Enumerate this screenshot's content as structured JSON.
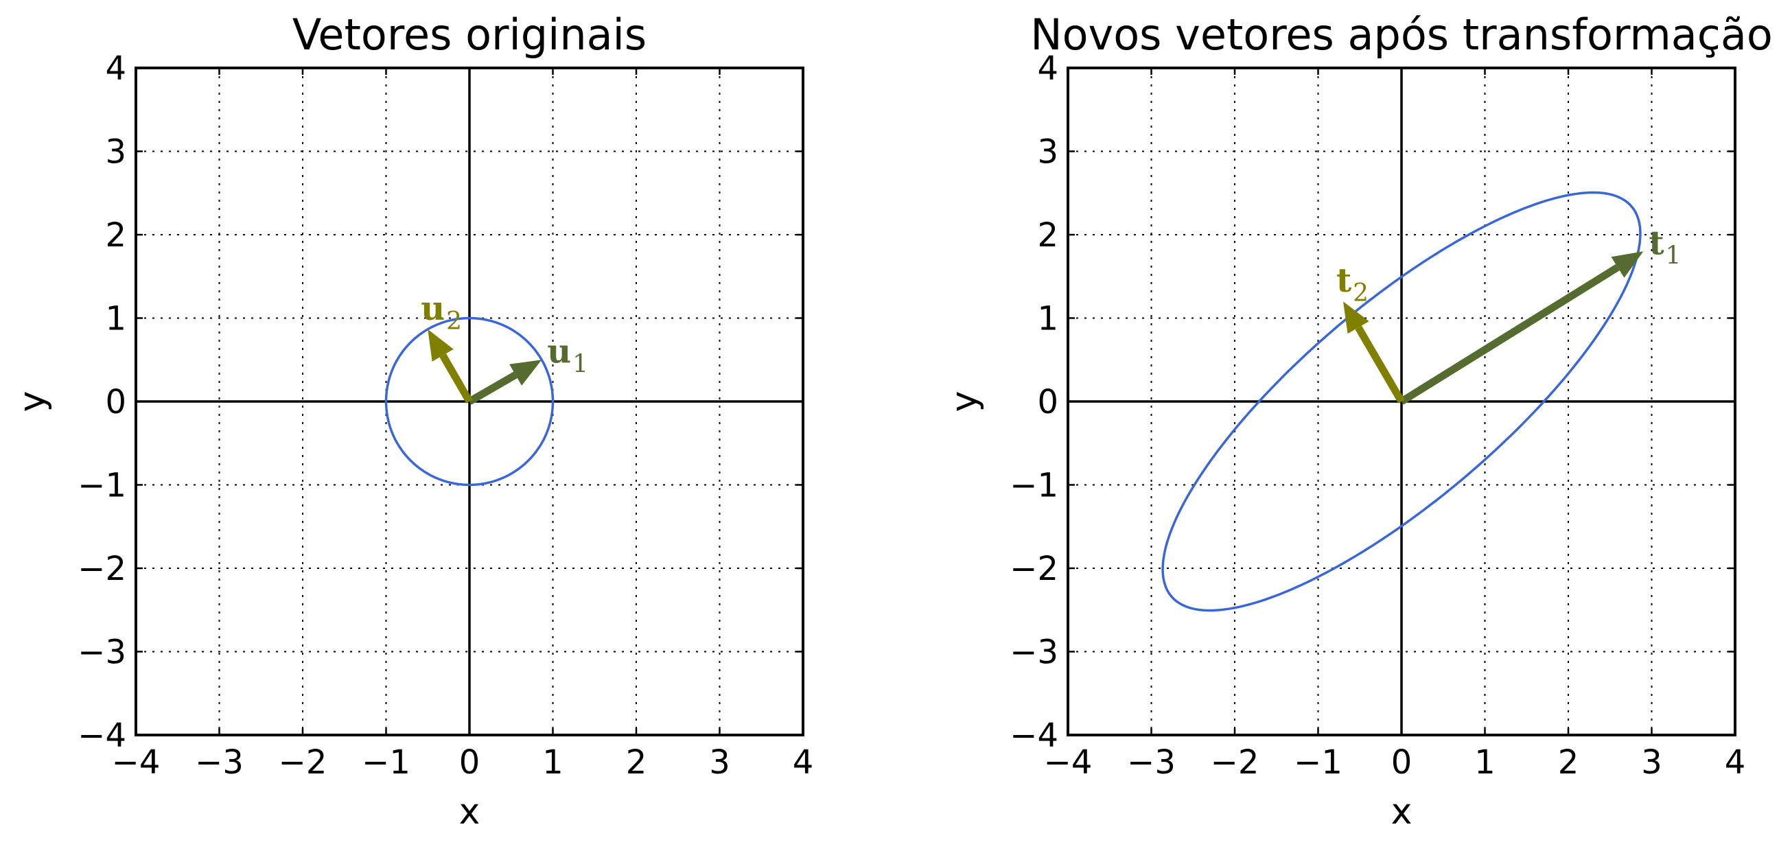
{
  "chart_data": [
    {
      "type": "line",
      "title": "Vetores originais",
      "xlabel": "x",
      "ylabel": "y",
      "xlim": [
        -4,
        4
      ],
      "ylim": [
        -4,
        4
      ],
      "xticks": [
        "−4",
        "−3",
        "−2",
        "−1",
        "0",
        "1",
        "2",
        "3",
        "4"
      ],
      "yticks": [
        "−4",
        "−3",
        "−2",
        "−1",
        "0",
        "1",
        "2",
        "3",
        "4"
      ],
      "grid": true,
      "curve": {
        "shape": "circle",
        "radius": 1,
        "center": [
          0,
          0
        ],
        "color": "#3a66d6"
      },
      "vectors": [
        {
          "label": "u",
          "subscript": "1",
          "x": 0.866,
          "y": 0.5,
          "color": "#556b2f"
        },
        {
          "label": "u",
          "subscript": "2",
          "x": -0.5,
          "y": 0.866,
          "color": "#808000"
        }
      ]
    },
    {
      "type": "line",
      "title": "Novos vetores após transformação",
      "xlabel": "x",
      "ylabel": "y",
      "xlim": [
        -4,
        4
      ],
      "ylim": [
        -4,
        4
      ],
      "xticks": [
        "−4",
        "−3",
        "−2",
        "−1",
        "0",
        "1",
        "2",
        "3",
        "4"
      ],
      "yticks": [
        "−4",
        "−3",
        "−2",
        "−1",
        "0",
        "1",
        "2",
        "3",
        "4"
      ],
      "grid": true,
      "curve": {
        "shape": "ellipse",
        "matrix": [
          [
            2.6,
            1.2
          ],
          [
            1.2,
            2.2
          ]
        ],
        "color": "#3a66d6"
      },
      "vectors": [
        {
          "label": "t",
          "subscript": "1",
          "x": 2.9,
          "y": 1.8,
          "color": "#556b2f"
        },
        {
          "label": "t",
          "subscript": "2",
          "x": -0.7,
          "y": 1.2,
          "color": "#808000"
        }
      ]
    }
  ]
}
